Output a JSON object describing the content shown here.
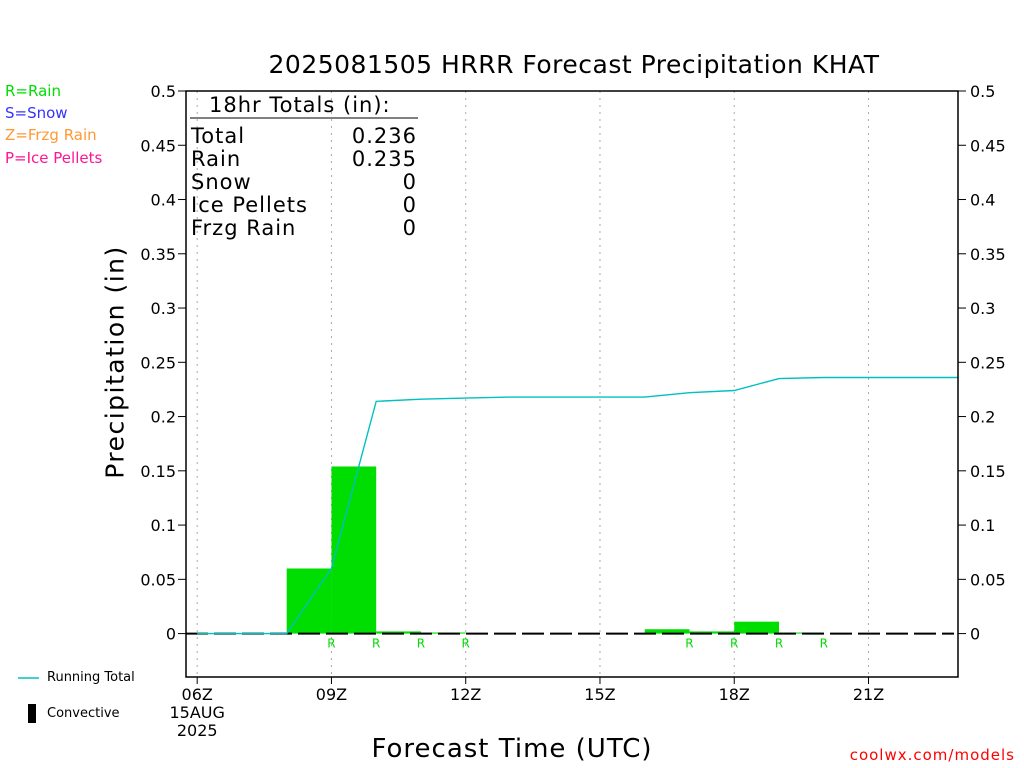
{
  "title": "2025081505 HRRR Forecast Precipitation KHAT",
  "type_legend": [
    {
      "text": "R=Rain",
      "color": "#00dd00"
    },
    {
      "text": "S=Snow",
      "color": "#3333ff"
    },
    {
      "text": "Z=Frzg Rain",
      "color": "#ff9933"
    },
    {
      "text": "P=Ice Pellets",
      "color": "#ff1493"
    }
  ],
  "bottom_legend": {
    "running_total": "Running Total",
    "convective": "Convective"
  },
  "totals": {
    "header": "18hr Totals (in):",
    "rows": [
      {
        "label": "Total",
        "value": "0.236"
      },
      {
        "label": "Rain",
        "value": "0.235"
      },
      {
        "label": "Snow",
        "value": "0"
      },
      {
        "label": "Ice Pellets",
        "value": "0"
      },
      {
        "label": "Frzg Rain",
        "value": "0"
      }
    ]
  },
  "credit": "coolwx.com/models",
  "colors": {
    "bar": "#00dd00",
    "running_total": "#00c0c0",
    "rain_marker": "#00dd00",
    "credit": "#ff0000"
  },
  "chart_data": {
    "type": "bar",
    "xlabel": "Forecast Time (UTC)",
    "ylabel": "Precipitation (in)",
    "x_unit": "hour UTC, 15 Aug 2025",
    "xlim": [
      5.75,
      23.0
    ],
    "ylim": [
      -0.04,
      0.5
    ],
    "yticks": [
      0,
      0.05,
      0.1,
      0.15,
      0.2,
      0.25,
      0.3,
      0.35,
      0.4,
      0.45,
      0.5
    ],
    "ytick_labels": [
      "0",
      "0.05",
      "0.1",
      "0.15",
      "0.2",
      "0.25",
      "0.3",
      "0.35",
      "0.4",
      "0.45",
      "0.5"
    ],
    "xticks": [
      {
        "x": 6,
        "lines": [
          "06Z",
          "15AUG",
          "2025"
        ]
      },
      {
        "x": 9,
        "lines": [
          "09Z"
        ]
      },
      {
        "x": 12,
        "lines": [
          "12Z"
        ]
      },
      {
        "x": 15,
        "lines": [
          "15Z"
        ]
      },
      {
        "x": 18,
        "lines": [
          "18Z"
        ]
      },
      {
        "x": 21,
        "lines": [
          "21Z"
        ]
      }
    ],
    "grid": "vertical dotted at ticks",
    "bars": [
      {
        "x0": 7,
        "x1": 8,
        "value": 0
      },
      {
        "x0": 8,
        "x1": 9,
        "value": 0.06
      },
      {
        "x0": 9,
        "x1": 10,
        "value": 0.154
      },
      {
        "x0": 10,
        "x1": 11,
        "value": 0.002
      },
      {
        "x0": 11,
        "x1": 12,
        "value": 0.001
      },
      {
        "x0": 16,
        "x1": 17,
        "value": 0.004
      },
      {
        "x0": 17,
        "x1": 18,
        "value": 0.002
      },
      {
        "x0": 18,
        "x1": 19,
        "value": 0.011
      },
      {
        "x0": 19,
        "x1": 20,
        "value": 0.001
      }
    ],
    "precip_type_markers": [
      {
        "x": 9,
        "type": "R"
      },
      {
        "x": 10,
        "type": "R"
      },
      {
        "x": 11,
        "type": "R"
      },
      {
        "x": 12,
        "type": "R"
      },
      {
        "x": 17,
        "type": "R"
      },
      {
        "x": 18,
        "type": "R"
      },
      {
        "x": 19,
        "type": "R"
      },
      {
        "x": 20,
        "type": "R"
      }
    ],
    "running_total": {
      "x": [
        6,
        7,
        8,
        9,
        10,
        11,
        12,
        13,
        14,
        15,
        16,
        17,
        18,
        19,
        20,
        21,
        22,
        23
      ],
      "y": [
        0,
        0,
        0,
        0.06,
        0.214,
        0.216,
        0.217,
        0.218,
        0.218,
        0.218,
        0.218,
        0.222,
        0.224,
        0.235,
        0.236,
        0.236,
        0.236,
        0.236
      ]
    }
  }
}
